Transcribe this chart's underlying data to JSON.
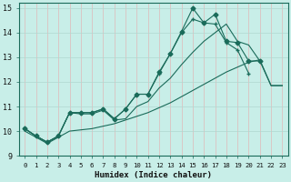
{
  "xlabel": "Humidex (Indice chaleur)",
  "xlim": [
    -0.5,
    23.5
  ],
  "ylim": [
    9,
    15.2
  ],
  "xticks": [
    0,
    1,
    2,
    3,
    4,
    5,
    6,
    7,
    8,
    9,
    10,
    11,
    12,
    13,
    14,
    15,
    16,
    17,
    18,
    19,
    20,
    21,
    22,
    23
  ],
  "yticks": [
    9,
    10,
    11,
    12,
    13,
    14,
    15
  ],
  "bg_color": "#c8eee8",
  "grid_color_h": "#b0d8d0",
  "grid_color_v": "#e0b8b8",
  "line_color": "#1a6b5a",
  "series": [
    {
      "x": [
        0,
        1,
        2,
        3,
        4,
        5,
        6,
        7,
        8,
        9,
        10,
        11,
        12,
        13,
        14,
        15,
        16,
        17,
        18,
        19,
        20,
        21
      ],
      "y": [
        10.1,
        9.8,
        9.55,
        9.8,
        10.75,
        10.75,
        10.75,
        10.9,
        10.5,
        10.9,
        11.5,
        11.5,
        12.4,
        13.15,
        14.05,
        15.0,
        14.4,
        14.75,
        13.65,
        13.6,
        12.85,
        12.85
      ],
      "marker": "D",
      "markersize": 2.5
    },
    {
      "x": [
        0,
        1,
        2,
        3,
        4,
        5,
        6,
        7,
        8,
        9,
        10,
        11,
        12,
        13,
        14,
        15,
        16,
        17,
        18,
        19,
        20
      ],
      "y": [
        10.1,
        9.8,
        9.55,
        9.8,
        10.75,
        10.75,
        10.75,
        10.9,
        10.5,
        10.9,
        11.5,
        11.5,
        12.35,
        13.15,
        14.0,
        14.55,
        14.4,
        14.35,
        13.6,
        13.3,
        12.35
      ],
      "marker": "+",
      "markersize": 3.5
    },
    {
      "x": [
        0,
        1,
        2,
        3,
        4,
        5,
        6,
        7,
        8,
        9,
        10,
        11,
        12,
        13,
        14,
        15,
        16,
        17,
        18,
        19,
        20,
        21,
        22,
        23
      ],
      "y": [
        10.1,
        9.8,
        9.55,
        9.8,
        10.75,
        10.7,
        10.7,
        10.85,
        10.45,
        10.5,
        11.0,
        11.2,
        11.75,
        12.15,
        12.7,
        13.2,
        13.65,
        14.0,
        14.35,
        13.65,
        13.5,
        12.85,
        11.85,
        11.85
      ],
      "marker": null,
      "markersize": 0
    },
    {
      "x": [
        0,
        1,
        2,
        3,
        4,
        5,
        6,
        7,
        8,
        9,
        10,
        11,
        12,
        13,
        14,
        15,
        16,
        17,
        18,
        19,
        20,
        21,
        22,
        23
      ],
      "y": [
        10.0,
        9.75,
        9.5,
        9.75,
        10.0,
        10.05,
        10.1,
        10.2,
        10.3,
        10.45,
        10.6,
        10.75,
        10.95,
        11.15,
        11.4,
        11.65,
        11.9,
        12.15,
        12.4,
        12.6,
        12.8,
        12.9,
        11.85,
        11.85
      ],
      "marker": null,
      "markersize": 0
    }
  ]
}
